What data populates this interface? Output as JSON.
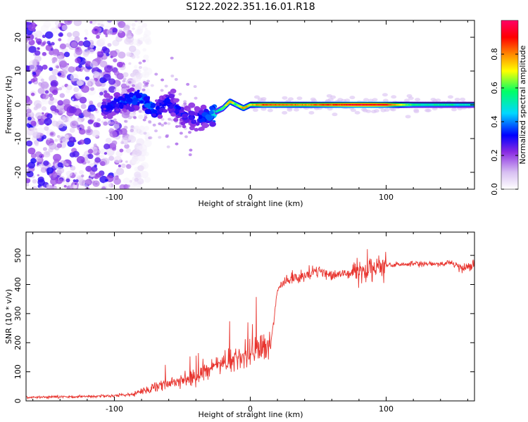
{
  "figure": {
    "title": "S122.2022.351.16.01.R18"
  },
  "chart_data": [
    {
      "type": "heatmap",
      "xlabel": "Height of straight line (km)",
      "ylabel": "Frequency (Hz)",
      "xlim": [
        -165,
        165
      ],
      "ylim": [
        -25,
        25
      ],
      "xticks": [
        -100,
        0,
        100
      ],
      "yticks": [
        -20,
        -10,
        0,
        10,
        20
      ],
      "colorbar": {
        "label": "Normalized spectral amplitude",
        "range": [
          0,
          1
        ],
        "ticks": [
          0.0,
          0.2,
          0.4,
          0.6,
          0.8
        ],
        "tick_labels": [
          "0.0",
          "0.2",
          "0.4",
          "0.6",
          "0.8"
        ],
        "colors": [
          "#ffffff",
          "#d8c0f2",
          "#8a2be2",
          "#0000ff",
          "#00d8ff",
          "#00ff66",
          "#ffff00",
          "#ff8800",
          "#ff0000",
          "#ff0066"
        ]
      },
      "trace": {
        "x": [
          -108,
          -95,
          -80,
          -70,
          -60,
          -50,
          -40,
          -30,
          -20,
          -15,
          -10,
          -5,
          0,
          10,
          40,
          80,
          100,
          120,
          165
        ],
        "y": [
          -1,
          1,
          2,
          -2,
          1,
          -3,
          -4,
          -3,
          -1,
          1,
          0,
          -1,
          0,
          0,
          0,
          0,
          0,
          0,
          0
        ],
        "amplitude": [
          0.3,
          0.35,
          0.4,
          0.35,
          0.35,
          0.3,
          0.3,
          0.4,
          0.6,
          0.8,
          0.6,
          0.8,
          0.7,
          0.85,
          0.8,
          0.95,
          0.9,
          0.55,
          0.5
        ]
      },
      "noise_region": {
        "x_range": [
          -165,
          -85
        ],
        "amplitude_max": 0.3
      }
    },
    {
      "type": "line",
      "xlabel": "Height of straight line (km)",
      "ylabel": "SNR (10 * v/v)",
      "xlim": [
        -165,
        165
      ],
      "ylim": [
        0,
        580
      ],
      "xticks": [
        -100,
        0,
        100
      ],
      "yticks": [
        0,
        100,
        200,
        300,
        400,
        500
      ],
      "color": "#e8342e",
      "series": [
        {
          "x": [
            -165,
            -140,
            -120,
            -100,
            -90,
            -80,
            -70,
            -60,
            -50,
            -40,
            -30,
            -20,
            -10,
            0,
            10,
            15,
            18,
            20,
            25,
            30,
            40,
            50,
            60,
            70,
            80,
            90,
            100,
            110,
            120,
            140,
            150,
            155,
            160,
            165
          ],
          "values": [
            12,
            14,
            15,
            18,
            22,
            30,
            50,
            60,
            70,
            85,
            110,
            130,
            145,
            160,
            175,
            190,
            300,
            380,
            410,
            420,
            430,
            450,
            430,
            440,
            445,
            450,
            465,
            470,
            470,
            470,
            475,
            450,
            460,
            470
          ]
        }
      ]
    }
  ]
}
